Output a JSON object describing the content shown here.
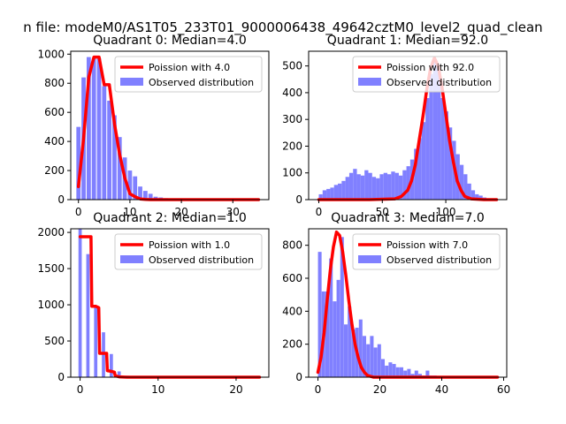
{
  "suptitle": "n file: modeM0/AS1T05_233T01_9000006438_49642cztM0_level2_quad_clean",
  "colors": {
    "bar": "#8080ff",
    "line": "#ff0000"
  },
  "chart_data": [
    {
      "type": "bar",
      "title": "Quadrant 0: Median=4.0",
      "xlim": [
        -1.5,
        37
      ],
      "ylim": [
        0,
        1020
      ],
      "xticks": [
        0,
        10,
        20,
        30
      ],
      "yticks": [
        0,
        200,
        400,
        600,
        800,
        1000
      ],
      "legend": {
        "line": "Poission with 4.0",
        "bars": "Observed distribution",
        "position": "top-right"
      },
      "series": [
        {
          "name": "Observed distribution",
          "type": "bar",
          "bar_width": 0.82,
          "x": [
            0,
            1,
            2,
            3,
            4,
            5,
            6,
            7,
            8,
            9,
            10,
            11,
            12,
            13,
            14,
            15,
            16,
            17,
            18,
            19,
            20,
            21,
            22,
            23,
            24,
            25,
            26,
            27,
            28,
            29,
            30,
            31,
            32,
            33,
            34
          ],
          "y": [
            500,
            840,
            980,
            970,
            970,
            780,
            680,
            580,
            430,
            290,
            200,
            160,
            90,
            60,
            40,
            20,
            15,
            10,
            5,
            5,
            3,
            2,
            1,
            1,
            0,
            0,
            0,
            0,
            0,
            0,
            0,
            0,
            0,
            0,
            0
          ]
        },
        {
          "name": "Poission with 4.0",
          "type": "line",
          "x": [
            0,
            1,
            2,
            3,
            4,
            5,
            6,
            7,
            8,
            9,
            10,
            11,
            12,
            13,
            14,
            15,
            16,
            18,
            20,
            25,
            30,
            35
          ],
          "y": [
            90,
            420,
            840,
            980,
            980,
            790,
            790,
            520,
            310,
            150,
            40,
            20,
            5,
            2,
            0,
            0,
            0,
            0,
            0,
            0,
            0,
            0
          ]
        }
      ]
    },
    {
      "type": "bar",
      "title": "Quadrant 1: Median=92.0",
      "xlim": [
        -8,
        148
      ],
      "ylim": [
        0,
        555
      ],
      "xticks": [
        0,
        50,
        100
      ],
      "yticks": [
        0,
        100,
        200,
        300,
        400,
        500
      ],
      "legend": {
        "line": "Poission with 92.0",
        "bars": "Observed distribution",
        "position": "top-right"
      },
      "series": [
        {
          "name": "Observed distribution",
          "type": "bar",
          "bar_width": 3,
          "x": [
            1.5,
            4.5,
            7.5,
            10.5,
            13.5,
            16.5,
            19.5,
            22.5,
            25.5,
            28.5,
            31.5,
            34.5,
            37.5,
            40.5,
            43.5,
            46.5,
            49.5,
            52.5,
            55.5,
            58.5,
            61.5,
            64.5,
            67.5,
            70.5,
            73.5,
            76.5,
            79.5,
            82.5,
            85.5,
            88.5,
            91.5,
            94.5,
            97.5,
            100.5,
            103.5,
            106.5,
            109.5,
            112.5,
            115.5,
            118.5,
            121.5,
            124.5,
            127.5,
            130.5,
            133.5
          ],
          "y": [
            20,
            35,
            40,
            45,
            55,
            60,
            70,
            85,
            100,
            115,
            95,
            90,
            110,
            100,
            85,
            80,
            95,
            100,
            95,
            105,
            100,
            90,
            110,
            125,
            150,
            190,
            230,
            290,
            380,
            470,
            520,
            490,
            380,
            330,
            270,
            220,
            170,
            130,
            95,
            60,
            35,
            20,
            15,
            8,
            5
          ]
        },
        {
          "name": "Poission with 92.0",
          "type": "line",
          "x": [
            0,
            40,
            60,
            65,
            70,
            73,
            76,
            79,
            82,
            85,
            88,
            91,
            94,
            97,
            100,
            103,
            106,
            109,
            112,
            115,
            120,
            130,
            140
          ],
          "y": [
            0,
            0,
            3,
            12,
            35,
            70,
            130,
            220,
            310,
            410,
            490,
            530,
            500,
            420,
            320,
            220,
            140,
            70,
            35,
            12,
            3,
            0,
            0
          ]
        }
      ]
    },
    {
      "type": "bar",
      "title": "Quadrant 2: Median=1.0",
      "xlim": [
        -1.2,
        24.2
      ],
      "ylim": [
        0,
        2050
      ],
      "xticks": [
        0,
        10,
        20
      ],
      "yticks": [
        0,
        500,
        1000,
        1500,
        2000
      ],
      "legend": {
        "line": "Poission with 1.0",
        "bars": "Observed distribution",
        "position": "top-right"
      },
      "series": [
        {
          "name": "Observed distribution",
          "type": "bar",
          "bar_width": 0.42,
          "x": [
            0,
            1,
            2,
            3,
            4,
            5,
            6,
            7,
            8,
            9,
            10,
            11,
            12,
            13,
            14,
            15,
            16,
            17,
            18,
            19,
            20,
            21,
            22,
            23
          ],
          "y": [
            2050,
            1700,
            960,
            620,
            320,
            80,
            20,
            5,
            2,
            0,
            0,
            0,
            0,
            0,
            0,
            0,
            0,
            0,
            0,
            0,
            0,
            0,
            0,
            0
          ]
        },
        {
          "name": "Poission with 1.0",
          "type": "line",
          "x": [
            0,
            1,
            1.4,
            1.5,
            2,
            2.4,
            2.5,
            3,
            3.4,
            3.5,
            4,
            4.4,
            4.5,
            5,
            6,
            8,
            10,
            15,
            20,
            23
          ],
          "y": [
            1940,
            1940,
            1940,
            980,
            980,
            960,
            330,
            330,
            330,
            90,
            80,
            70,
            20,
            5,
            0,
            0,
            0,
            0,
            0,
            0
          ]
        }
      ]
    },
    {
      "type": "bar",
      "title": "Quadrant 3: Median=7.0",
      "xlim": [
        -3,
        61
      ],
      "ylim": [
        0,
        900
      ],
      "xticks": [
        0,
        20,
        40,
        60
      ],
      "yticks": [
        0,
        200,
        400,
        600,
        800
      ],
      "legend": {
        "line": "Poission with 7.0",
        "bars": "Observed distribution",
        "position": "top-right"
      },
      "series": [
        {
          "name": "Observed distribution",
          "type": "bar",
          "bar_width": 1.16,
          "x": [
            0.6,
            1.8,
            3,
            4.2,
            5.4,
            6.6,
            7.8,
            9,
            10.2,
            11.4,
            12.6,
            13.8,
            15,
            16.2,
            17.4,
            18.6,
            19.8,
            21,
            22.2,
            23.4,
            24.6,
            25.8,
            27,
            28.2,
            29.4,
            30.6,
            31.8,
            33,
            34.2,
            35.4,
            36.6,
            37.8,
            39,
            40.2,
            41.4,
            42.6,
            43.8,
            45,
            46.2,
            47.4,
            48.6,
            49.8,
            51
          ],
          "y": [
            760,
            520,
            520,
            720,
            460,
            590,
            850,
            320,
            430,
            290,
            300,
            350,
            250,
            200,
            250,
            180,
            200,
            110,
            70,
            90,
            80,
            60,
            60,
            40,
            50,
            20,
            40,
            20,
            10,
            40,
            10,
            10,
            5,
            5,
            5,
            5,
            0,
            0,
            0,
            0,
            0,
            0,
            0
          ]
        },
        {
          "name": "Poission with 7.0",
          "type": "line",
          "x": [
            0,
            1,
            2,
            3,
            4,
            5,
            6,
            7,
            8,
            9,
            10,
            11,
            12,
            13,
            14,
            15,
            16,
            17,
            18,
            20,
            25,
            30,
            40,
            50,
            58
          ],
          "y": [
            30,
            120,
            270,
            470,
            650,
            790,
            880,
            860,
            760,
            620,
            460,
            320,
            200,
            120,
            60,
            30,
            10,
            5,
            0,
            0,
            0,
            0,
            0,
            0,
            0
          ]
        }
      ]
    }
  ]
}
